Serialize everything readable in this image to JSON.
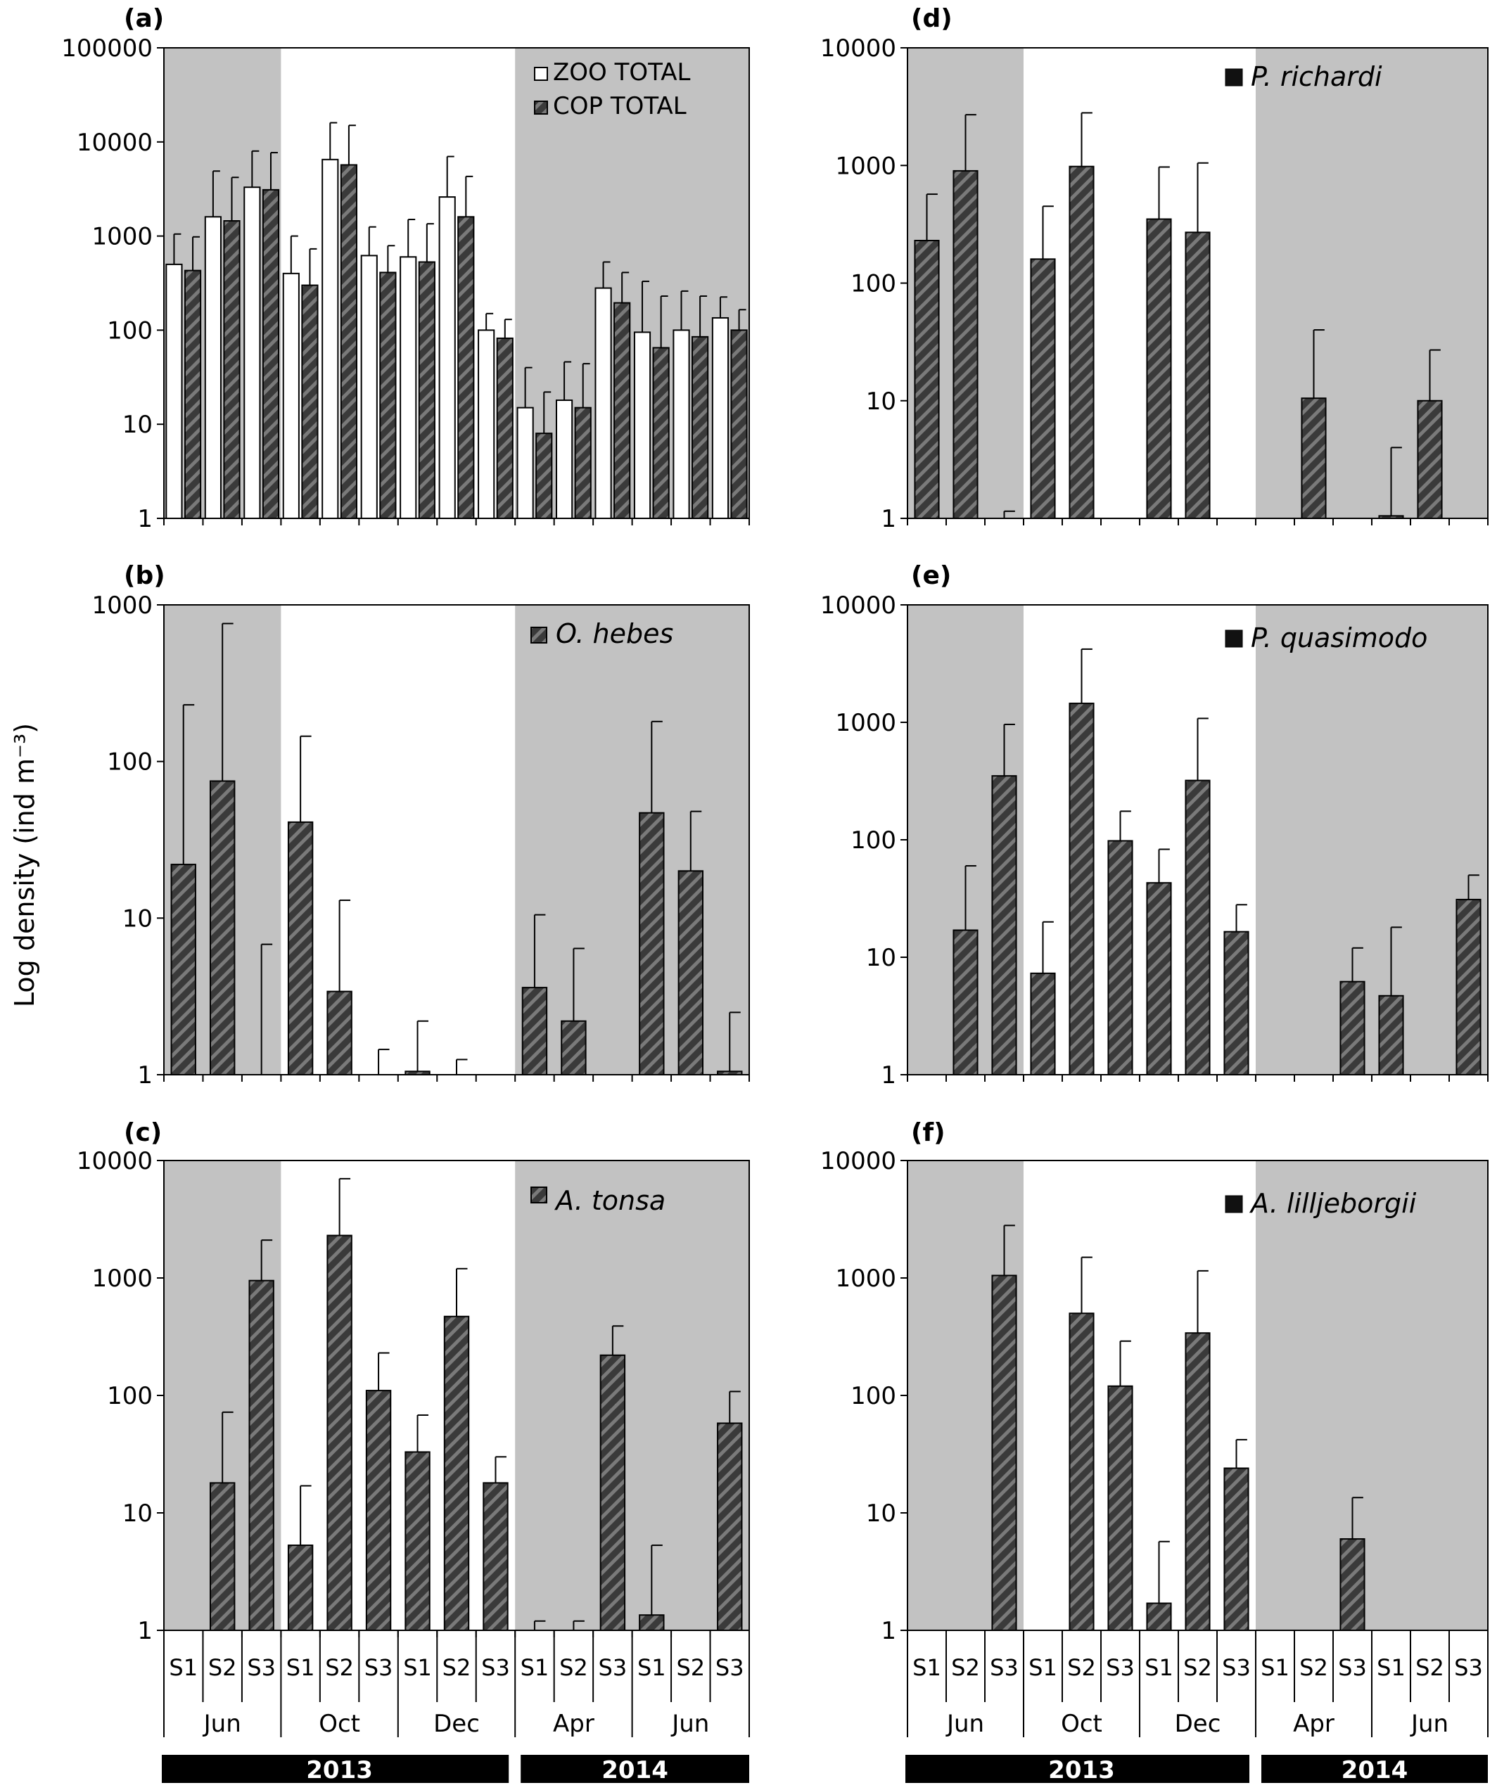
{
  "figure": {
    "ylabel": "Log density (ind m⁻³)",
    "stations": [
      "S1",
      "S2",
      "S3"
    ],
    "months": [
      "Jun",
      "Oct",
      "Dec",
      "Apr",
      "Jun"
    ],
    "years": [
      "2013",
      "2014"
    ]
  },
  "colors": {
    "shade": "#c2c2c2",
    "bar_dark": "#3d3d3d",
    "bar_white": "#ffffff",
    "year_bar": "#000000"
  },
  "chart_data": [
    {
      "panel": "(a)",
      "type": "bar",
      "scale": "log",
      "ylim": [
        1,
        100000
      ],
      "yticks": [
        "1",
        "10",
        "100",
        "1000",
        "10000",
        "100000"
      ],
      "categories": [
        "Jun S1",
        "Jun S2",
        "Jun S3",
        "Oct S1",
        "Oct S2",
        "Oct S3",
        "Dec S1",
        "Dec S2",
        "Dec S3",
        "Apr S1",
        "Apr S2",
        "Apr S3",
        "Jun S1",
        "Jun S2",
        "Jun S3"
      ],
      "legend": [
        "ZOO TOTAL",
        "COP TOTAL"
      ],
      "series": [
        {
          "name": "ZOO TOTAL",
          "values": [
            500,
            1600,
            3300,
            400,
            6500,
            620,
            600,
            2600,
            100,
            15,
            18,
            280,
            95,
            100,
            135
          ],
          "errors": [
            1050,
            4900,
            8000,
            1000,
            16000,
            1250,
            1500,
            7000,
            150,
            40,
            46,
            530,
            330,
            260,
            225
          ]
        },
        {
          "name": "COP TOTAL",
          "values": [
            430,
            1450,
            3100,
            300,
            5700,
            410,
            530,
            1600,
            82,
            8,
            15,
            195,
            65,
            85,
            100
          ],
          "errors": [
            980,
            4200,
            7700,
            730,
            15000,
            790,
            1350,
            4300,
            130,
            22,
            44,
            410,
            230,
            230,
            165
          ]
        }
      ]
    },
    {
      "panel": "(b)",
      "type": "bar",
      "scale": "log",
      "ylim": [
        1,
        1000
      ],
      "yticks": [
        "1",
        "10",
        "100",
        "1000"
      ],
      "categories": [
        "Jun S1",
        "Jun S2",
        "Jun S3",
        "Oct S1",
        "Oct S2",
        "Oct S3",
        "Dec S1",
        "Dec S2",
        "Dec S3",
        "Apr S1",
        "Apr S2",
        "Apr S3",
        "Jun S1",
        "Jun S2",
        "Jun S3"
      ],
      "legend": [
        "O. hebes"
      ],
      "series": [
        {
          "name": "O. hebes",
          "values": [
            22,
            75,
            1,
            41,
            3.4,
            1,
            1.05,
            1,
            1,
            3.6,
            2.2,
            1,
            47,
            20,
            1.05
          ],
          "errors": [
            230,
            760,
            6.8,
            145,
            13,
            1.45,
            2.2,
            1.25,
            1,
            10.5,
            6.4,
            1,
            180,
            48,
            2.5
          ]
        }
      ]
    },
    {
      "panel": "(c)",
      "type": "bar",
      "scale": "log",
      "ylim": [
        1,
        10000
      ],
      "yticks": [
        "1",
        "10",
        "100",
        "1000",
        "10000"
      ],
      "categories": [
        "Jun S1",
        "Jun S2",
        "Jun S3",
        "Oct S1",
        "Oct S2",
        "Oct S3",
        "Dec S1",
        "Dec S2",
        "Dec S3",
        "Apr S1",
        "Apr S2",
        "Apr S3",
        "Jun S1",
        "Jun S2",
        "Jun S3"
      ],
      "legend": [
        "A. tonsa"
      ],
      "series": [
        {
          "name": "A. tonsa",
          "values": [
            1,
            18,
            950,
            5.3,
            2300,
            110,
            33,
            470,
            18,
            1,
            1,
            220,
            1.35,
            1,
            58
          ],
          "errors": [
            1,
            72,
            2100,
            17,
            7000,
            230,
            68,
            1200,
            30,
            1.2,
            1.2,
            390,
            5.3,
            1,
            108
          ]
        }
      ]
    },
    {
      "panel": "(d)",
      "type": "bar",
      "scale": "log",
      "ylim": [
        1,
        10000
      ],
      "yticks": [
        "1",
        "10",
        "100",
        "1000",
        "10000"
      ],
      "categories": [
        "Jun S1",
        "Jun S2",
        "Jun S3",
        "Oct S1",
        "Oct S2",
        "Oct S3",
        "Dec S1",
        "Dec S2",
        "Dec S3",
        "Apr S1",
        "Apr S2",
        "Apr S3",
        "Jun S1",
        "Jun S2",
        "Jun S3"
      ],
      "legend": [
        "P. richardi"
      ],
      "series": [
        {
          "name": "P. richardi",
          "values": [
            230,
            900,
            1,
            160,
            980,
            1,
            350,
            270,
            1,
            1,
            10.5,
            1,
            1.05,
            10,
            1
          ],
          "errors": [
            570,
            2700,
            1.15,
            450,
            2800,
            1,
            970,
            1050,
            1,
            1,
            40,
            1,
            4,
            27,
            1
          ]
        }
      ]
    },
    {
      "panel": "(e)",
      "type": "bar",
      "scale": "log",
      "ylim": [
        1,
        10000
      ],
      "yticks": [
        "1",
        "10",
        "100",
        "1000",
        "10000"
      ],
      "categories": [
        "Jun S1",
        "Jun S2",
        "Jun S3",
        "Oct S1",
        "Oct S2",
        "Oct S3",
        "Dec S1",
        "Dec S2",
        "Dec S3",
        "Apr S1",
        "Apr S2",
        "Apr S3",
        "Jun S1",
        "Jun S2",
        "Jun S3"
      ],
      "legend": [
        "P. quasimodo"
      ],
      "series": [
        {
          "name": "P. quasimodo",
          "values": [
            1,
            17,
            350,
            7.3,
            1450,
            98,
            43,
            320,
            16.5,
            1,
            1,
            6.2,
            4.7,
            1,
            31
          ],
          "errors": [
            1,
            60,
            960,
            20,
            4200,
            175,
            83,
            1080,
            28,
            1,
            1,
            12,
            18,
            1,
            50
          ]
        }
      ]
    },
    {
      "panel": "(f)",
      "type": "bar",
      "scale": "log",
      "ylim": [
        1,
        10000
      ],
      "yticks": [
        "1",
        "10",
        "100",
        "1000",
        "10000"
      ],
      "categories": [
        "Jun S1",
        "Jun S2",
        "Jun S3",
        "Oct S1",
        "Oct S2",
        "Oct S3",
        "Dec S1",
        "Dec S2",
        "Dec S3",
        "Apr S1",
        "Apr S2",
        "Apr S3",
        "Jun S1",
        "Jun S2",
        "Jun S3"
      ],
      "legend": [
        "A. lilljeborgii"
      ],
      "series": [
        {
          "name": "A. lilljeborgii",
          "values": [
            1,
            1,
            1050,
            1,
            500,
            120,
            1.7,
            340,
            24,
            1,
            1,
            6,
            1,
            1,
            1
          ],
          "errors": [
            1,
            1,
            2800,
            1,
            1500,
            290,
            5.7,
            1150,
            42,
            1,
            1,
            13.5,
            1,
            1,
            1
          ]
        }
      ]
    }
  ]
}
